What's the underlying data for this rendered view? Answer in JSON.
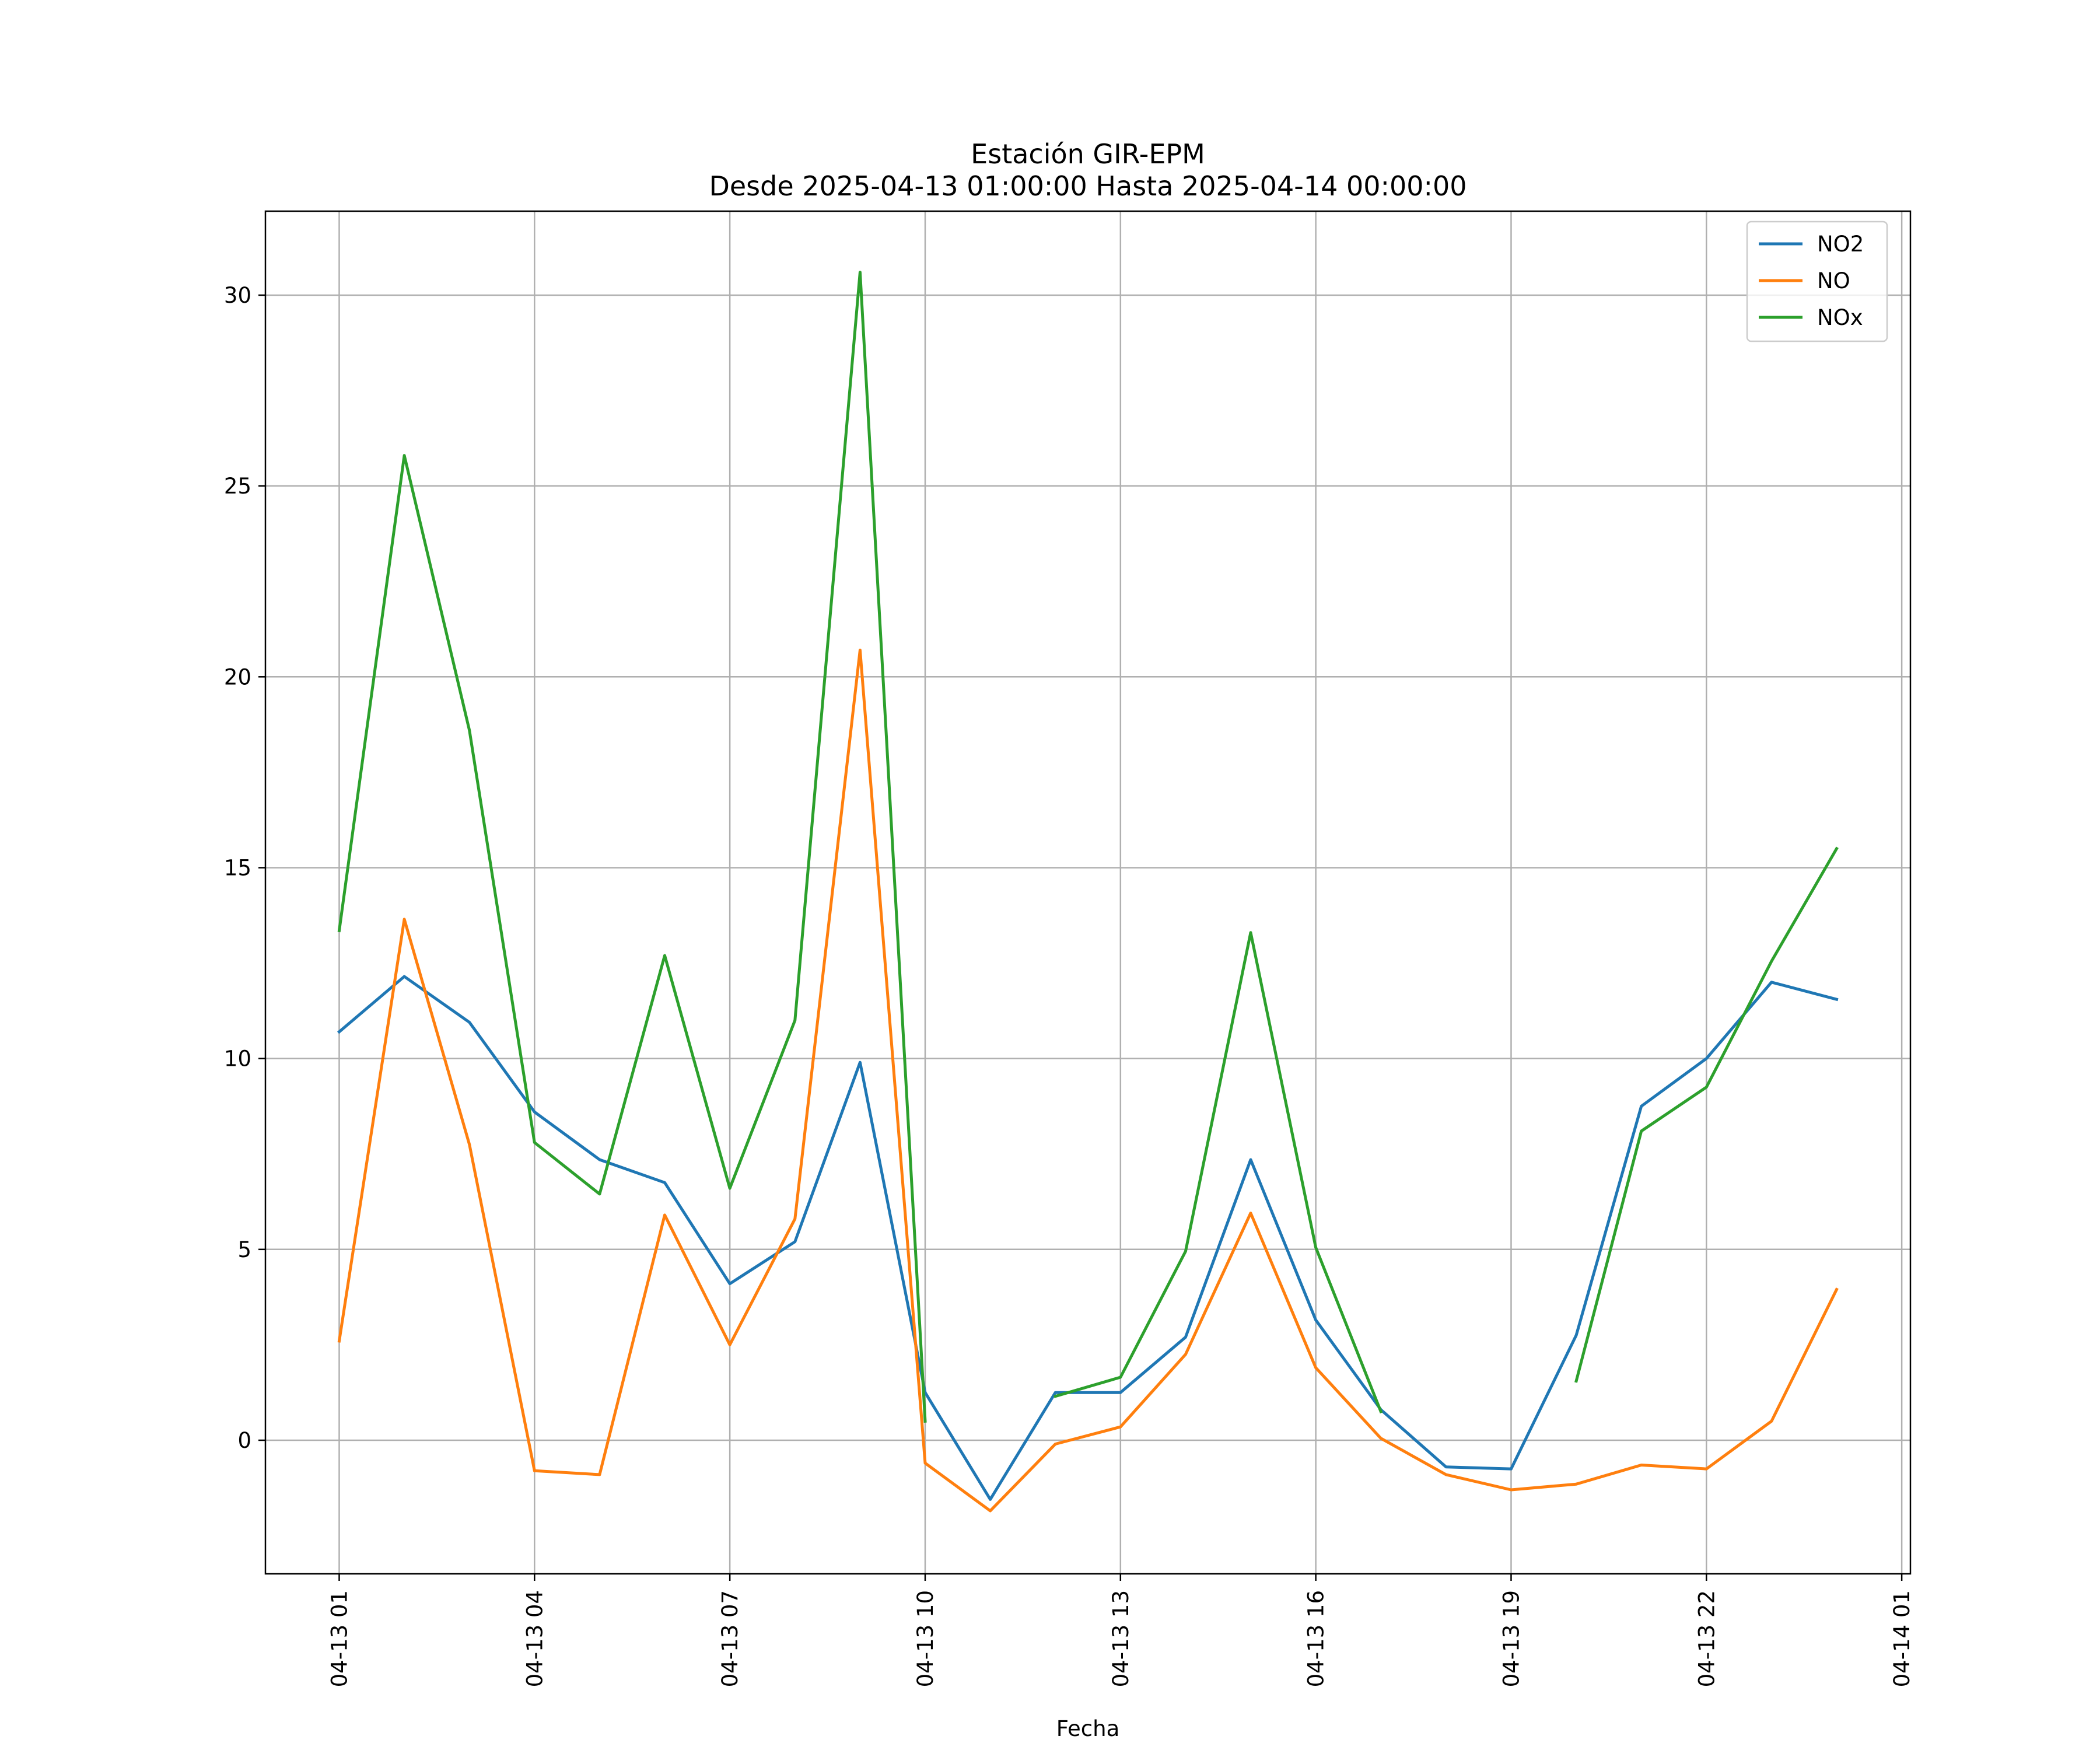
{
  "chart_data": {
    "type": "line",
    "title": "Estación GIR-EPM",
    "subtitle": "Desde 2025-04-13 01:00:00 Hasta 2025-04-14 00:00:00",
    "xlabel": "Fecha",
    "ylabel": "",
    "x": [
      "2025-04-13 01:00",
      "2025-04-13 02:00",
      "2025-04-13 03:00",
      "2025-04-13 04:00",
      "2025-04-13 05:00",
      "2025-04-13 06:00",
      "2025-04-13 07:00",
      "2025-04-13 08:00",
      "2025-04-13 09:00",
      "2025-04-13 10:00",
      "2025-04-13 11:00",
      "2025-04-13 12:00",
      "2025-04-13 13:00",
      "2025-04-13 14:00",
      "2025-04-13 15:00",
      "2025-04-13 16:00",
      "2025-04-13 17:00",
      "2025-04-13 18:00",
      "2025-04-13 19:00",
      "2025-04-13 20:00",
      "2025-04-13 21:00",
      "2025-04-13 22:00",
      "2025-04-13 23:00",
      "2025-04-14 00:00"
    ],
    "x_tick_labels": [
      "04-13 01",
      "04-13 04",
      "04-13 07",
      "04-13 10",
      "04-13 13",
      "04-13 16",
      "04-13 19",
      "04-13 22",
      "04-14 01"
    ],
    "x_ticks": [
      "2025-04-13 01:00",
      "2025-04-13 04:00",
      "2025-04-13 07:00",
      "2025-04-13 10:00",
      "2025-04-13 13:00",
      "2025-04-13 16:00",
      "2025-04-13 19:00",
      "2025-04-13 22:00",
      "2025-04-14 01:00"
    ],
    "xlim": [
      "2025-04-12 23:52",
      "2025-04-14 01:08"
    ],
    "y_ticks": [
      0,
      5,
      10,
      15,
      20,
      25,
      30
    ],
    "ylim": [
      -3.5,
      32.2
    ],
    "grid": true,
    "legend_position": "top-right",
    "series": [
      {
        "name": "NO2",
        "color": "#1f77b4",
        "values": [
          10.7,
          12.15,
          10.95,
          8.6,
          7.35,
          6.75,
          4.1,
          5.2,
          9.9,
          1.25,
          -1.55,
          1.25,
          1.25,
          2.7,
          7.35,
          3.15,
          0.8,
          -0.7,
          -0.75,
          2.75,
          8.75,
          10.0,
          12.0,
          11.55
        ]
      },
      {
        "name": "NO",
        "color": "#ff7f0e",
        "values": [
          2.6,
          13.65,
          7.75,
          -0.8,
          -0.9,
          5.9,
          2.5,
          5.8,
          20.7,
          -0.6,
          -1.85,
          -0.1,
          0.35,
          2.25,
          5.95,
          1.9,
          0.05,
          -0.9,
          -1.3,
          -1.15,
          -0.65,
          -0.75,
          0.5,
          3.95
        ]
      },
      {
        "name": "NOx",
        "color": "#2ca02c",
        "values": [
          13.35,
          25.8,
          18.6,
          7.8,
          6.45,
          12.7,
          6.6,
          11.0,
          30.6,
          0.5,
          null,
          1.15,
          1.65,
          4.95,
          13.3,
          5.05,
          0.75,
          null,
          null,
          1.55,
          8.1,
          9.25,
          12.55,
          15.5
        ]
      }
    ]
  }
}
